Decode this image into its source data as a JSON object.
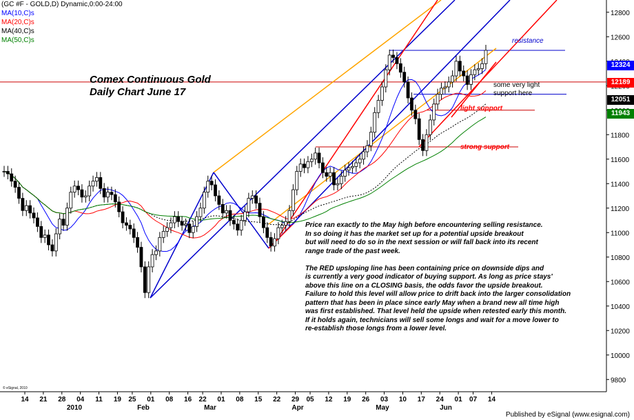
{
  "header": {
    "symbol": "(GC #F - GOLD,D) Dynamic,0:00-24:00",
    "ma10": "MA(10,C)s",
    "ma20": "MA(20,C)s",
    "ma40": "MA(40,C)s",
    "ma50": "MA(50,C)s"
  },
  "title": {
    "line1": "Comex Continuous Gold",
    "line2": "Daily Chart     June 17"
  },
  "annotations": {
    "resistance": "resistance",
    "light_support_a": "some very light",
    "light_support_b": "support here",
    "light_support": "light support",
    "strong_support": "strong support"
  },
  "commentary": [
    "Price ran exactly to the May high before encountering selling resistance.",
    "In so doing it has the market set up for a potential  upside breakout",
    "but will need to do so in the next session or will fall back into its recent",
    "range trade of the past week.",
    "",
    "The RED upsloping line has been containing price on downside dips and",
    "is currently a very good indicator of buying support. As long as price stays'",
    "above this line on a CLOSING basis, the odds favor the upside breakout.",
    "Failure to hold this level will allow price to drift back into the larger consolidation",
    "pattern that has been in place since early May when a brand new all time high",
    "was first established. That level held the upside when retested early this month.",
    "If it holds again, technicians will sell some longs and wait for a move lower to",
    "re-establish those longs from a lower level."
  ],
  "price_labels": {
    "l12324": "12324",
    "l12189": "12189",
    "l12051": "12051",
    "l11943": "11943"
  },
  "footer": {
    "credit": "Published by eSignal (www.esignal.com)",
    "small": "© eSignal, 2010"
  },
  "colors": {
    "ma10": "#0000ff",
    "ma20": "#ff0000",
    "ma40": "#000000",
    "ma50": "#008000",
    "label_blue": "#0000ff",
    "label_red": "#cc0000",
    "label_black": "#000000",
    "label_green": "#008000",
    "channel_orange": "#ffa500",
    "channel_blue": "#0000cc",
    "channel_red": "#ff0000"
  },
  "chart_data": {
    "type": "candlestick",
    "y_unit": "price (dollars x 10, e.g. 12400 = $1240.0)",
    "ylim": [
      9700,
      12900
    ],
    "y_ticks": [
      9800,
      10000,
      10200,
      10400,
      10600,
      10800,
      11000,
      11200,
      11400,
      11600,
      11800,
      12000,
      12200,
      12400,
      12600,
      12800
    ],
    "y_tick_labels": [
      "9800",
      "10000",
      "10200",
      "10400",
      "10600",
      "10800",
      "11000",
      "11200",
      "11400",
      "11600",
      "11800",
      "12000",
      "12200",
      "12400",
      "12600",
      "12800"
    ],
    "x_day_labels": [
      "14",
      "21",
      "28",
      "04",
      "11",
      "19",
      "25",
      "01",
      "08",
      "16",
      "22",
      "01",
      "08",
      "15",
      "22",
      "29",
      "05",
      "12",
      "19",
      "26",
      "03",
      "10",
      "17",
      "24",
      "01",
      "07",
      "14"
    ],
    "x_month_labels": [
      "2010",
      "Feb",
      "Mar",
      "Apr",
      "May",
      "Jun"
    ],
    "resistance_level": 12489,
    "light_support_level": 12000,
    "strong_support_level": 11700,
    "very_light_support_level": 12130,
    "closes": [
      11500,
      11480,
      11420,
      11370,
      11280,
      11180,
      11220,
      11160,
      11120,
      11050,
      10960,
      10980,
      10900,
      10850,
      10990,
      11110,
      11060,
      11200,
      11330,
      11380,
      11350,
      11290,
      11300,
      11380,
      11420,
      11450,
      11360,
      11290,
      11330,
      11310,
      11250,
      11170,
      11080,
      11060,
      11030,
      10960,
      10880,
      10720,
      10510,
      10720,
      10820,
      10850,
      10960,
      11010,
      11040,
      11080,
      11130,
      11090,
      11060,
      11070,
      11000,
      11050,
      11130,
      11200,
      11330,
      11420,
      11390,
      11300,
      11230,
      11160,
      11180,
      11100,
      11070,
      11020,
      11100,
      11170,
      11280,
      11300,
      11240,
      11130,
      11040,
      10960,
      10890,
      10950,
      11040,
      11060,
      11090,
      11180,
      11350,
      11500,
      11560,
      11530,
      11580,
      11600,
      11650,
      11570,
      11490,
      11460,
      11490,
      11390,
      11400,
      11460,
      11510,
      11530,
      11540,
      11570,
      11600,
      11660,
      11710,
      11820,
      11980,
      12080,
      12190,
      12330,
      12450,
      12430,
      12380,
      12310,
      12230,
      12100,
      12000,
      11930,
      11760,
      11670,
      11800,
      11920,
      12050,
      12130,
      12180,
      12190,
      12230,
      12280,
      12400,
      12320,
      12280,
      12210,
      12290,
      12330,
      12340,
      12380,
      12489
    ]
  }
}
